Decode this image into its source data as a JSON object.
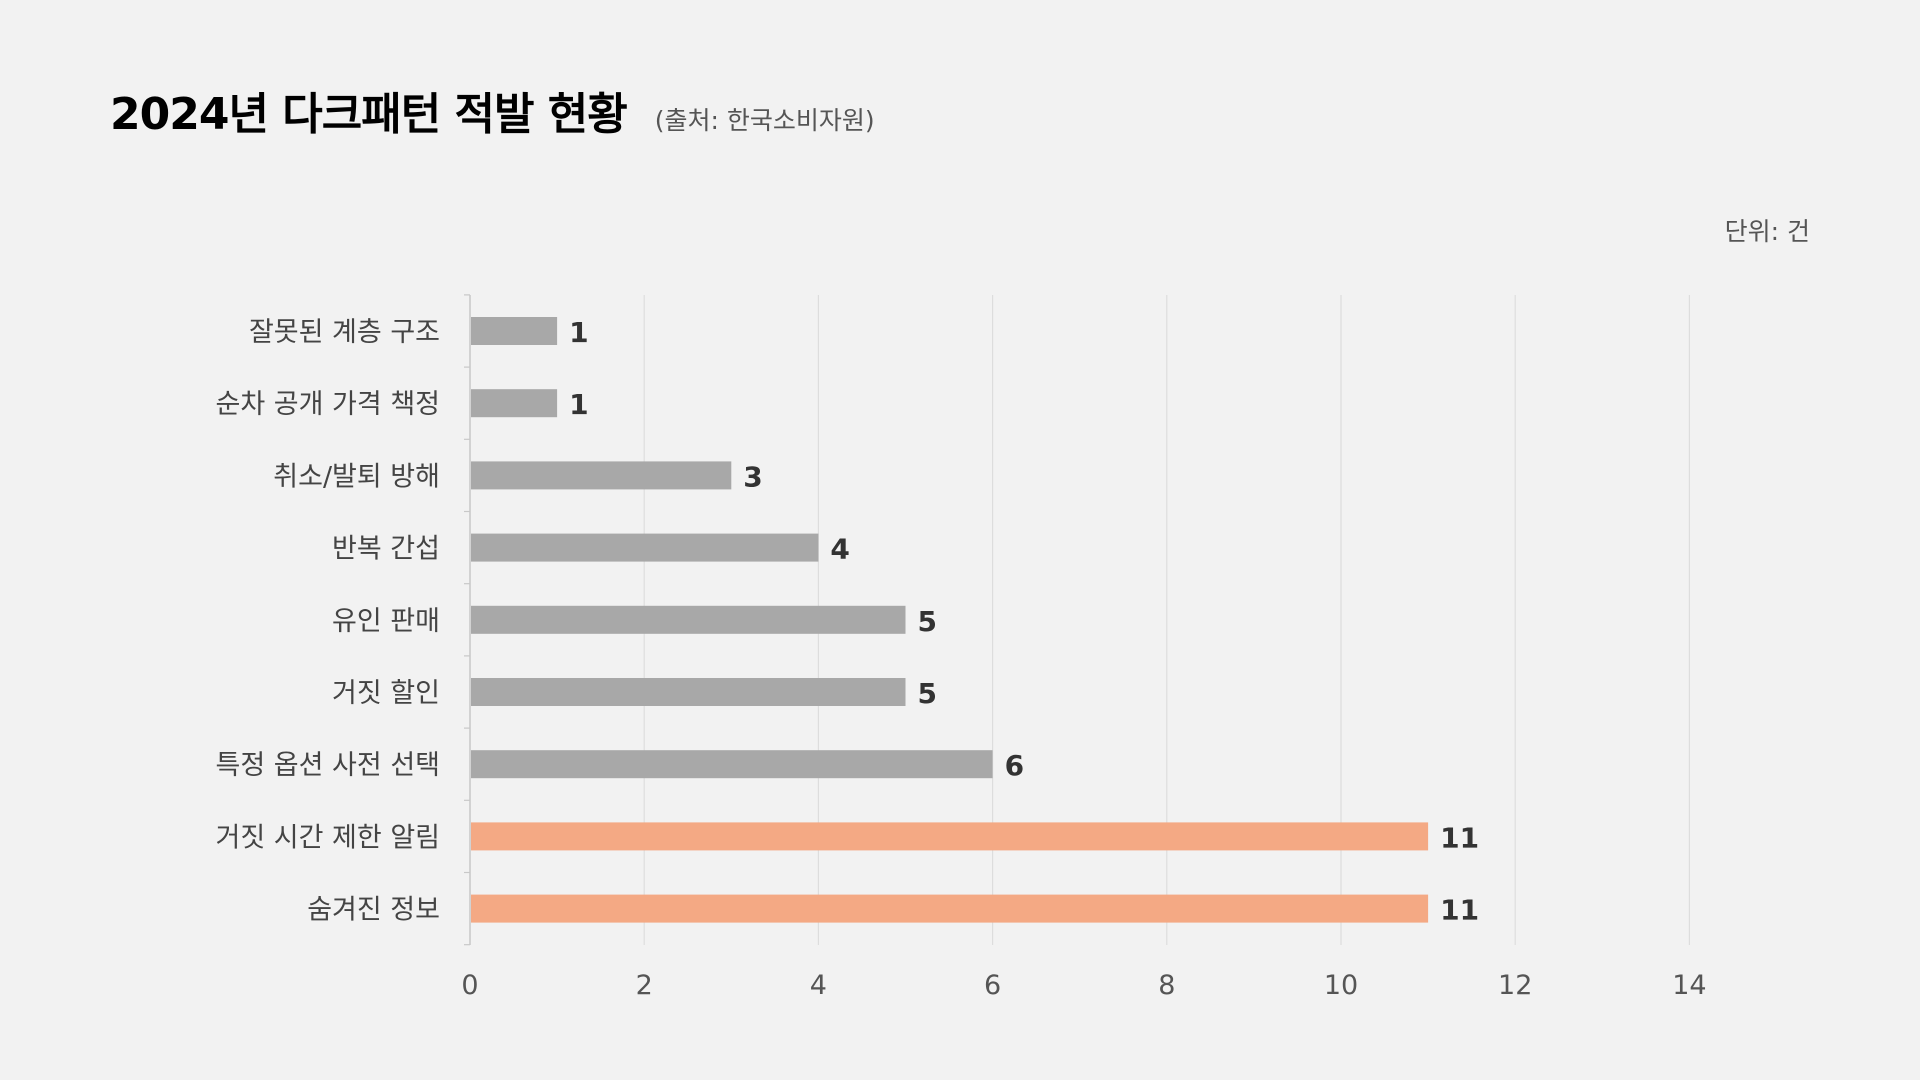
{
  "header": {
    "title": "2024년 다크패턴 적발 현황",
    "source": "(출처: 한국소비자원)",
    "unit": "단위: 건"
  },
  "colors": {
    "background": "#f2f2f2",
    "bar_default": "#a8a8a8",
    "bar_highlight": "#f4a984",
    "grid": "#dddddd",
    "axis": "#c8c8c8"
  },
  "chart_data": {
    "type": "bar",
    "orientation": "horizontal",
    "title": "2024년 다크패턴 적발 현황",
    "subtitle": "(출처: 한국소비자원)",
    "unit_label": "단위: 건",
    "xlabel": "",
    "ylabel": "",
    "categories": [
      "잘못된 계층 구조",
      "순차 공개 가격 책정",
      "취소/발퇴 방해",
      "반복 간섭",
      "유인 판매",
      "거짓 할인",
      "특정 옵션 사전 선택",
      "거짓 시간 제한 알림",
      "숨겨진 정보"
    ],
    "values": [
      1,
      1,
      3,
      4,
      5,
      5,
      6,
      11,
      11
    ],
    "highlight": [
      false,
      false,
      false,
      false,
      false,
      false,
      false,
      true,
      true
    ],
    "xlim": [
      0,
      14
    ],
    "xticks": [
      0,
      2,
      4,
      6,
      8,
      10,
      12,
      14
    ],
    "grid": "vertical",
    "legend": "none"
  }
}
